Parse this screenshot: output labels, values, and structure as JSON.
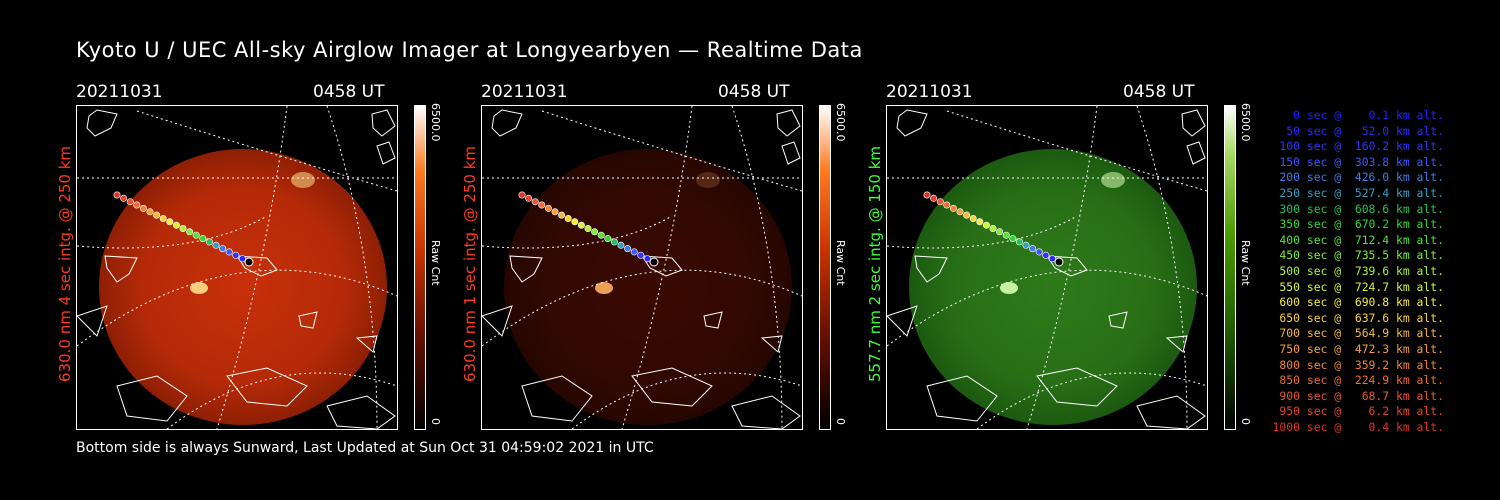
{
  "title": "Kyoto U / UEC All-sky Airglow Imager at Longyearbyen — Realtime Data",
  "footer": "Bottom side is always Sunward, Last Updated at Sun Oct 31 04:59:02 2021 in UTC",
  "panels": [
    {
      "date": "20211031",
      "time": "0458 UT",
      "label": "630.0 nm 4 sec intg. @ 250 km",
      "label_color": "#ff3b1e",
      "cbar_max": "6500.0",
      "cbar_min": "0",
      "cbar_unit": "Raw Cnt",
      "cbar_hue": "red",
      "brightness": "high"
    },
    {
      "date": "20211031",
      "time": "0458 UT",
      "label": "630.0 nm 1 sec intg. @ 250 km",
      "label_color": "#ff3b1e",
      "cbar_max": "6500.0",
      "cbar_min": "0",
      "cbar_unit": "Raw Cnt",
      "cbar_hue": "red",
      "brightness": "low"
    },
    {
      "date": "20211031",
      "time": "0458 UT",
      "label": "557.7 nm 2 sec intg. @ 150 km",
      "label_color": "#3cff3c",
      "cbar_max": "6500.0",
      "cbar_min": "0",
      "cbar_unit": "Raw Cnt",
      "cbar_hue": "green",
      "brightness": "medium"
    }
  ],
  "legend": [
    {
      "text": "   0 sec @    0.1 km alt.",
      "color": "#2020ff"
    },
    {
      "text": "  50 sec @   52.0 km alt.",
      "color": "#2a2aff"
    },
    {
      "text": " 100 sec @  160.2 km alt.",
      "color": "#3333ff"
    },
    {
      "text": " 150 sec @  303.8 km alt.",
      "color": "#3d55ff"
    },
    {
      "text": " 200 sec @  426.0 km alt.",
      "color": "#3f7be0"
    },
    {
      "text": " 250 sec @  527.4 km alt.",
      "color": "#30a0c0"
    },
    {
      "text": " 300 sec @  608.6 km alt.",
      "color": "#22c060"
    },
    {
      "text": " 350 sec @  670.2 km alt.",
      "color": "#33d733"
    },
    {
      "text": " 400 sec @  712.4 km alt.",
      "color": "#55e03a"
    },
    {
      "text": " 450 sec @  735.5 km alt.",
      "color": "#80ea40"
    },
    {
      "text": " 500 sec @  739.6 km alt.",
      "color": "#aef03c"
    },
    {
      "text": " 550 sec @  724.7 km alt.",
      "color": "#d8f23a"
    },
    {
      "text": " 600 sec @  690.8 km alt.",
      "color": "#f2ec3a"
    },
    {
      "text": " 650 sec @  637.6 km alt.",
      "color": "#f6d23a"
    },
    {
      "text": " 700 sec @  564.9 km alt.",
      "color": "#f6b83a"
    },
    {
      "text": " 750 sec @  472.3 km alt.",
      "color": "#f59e38"
    },
    {
      "text": " 800 sec @  359.2 km alt.",
      "color": "#f28436"
    },
    {
      "text": " 850 sec @  224.9 km alt.",
      "color": "#ee6a33"
    },
    {
      "text": " 900 sec @   68.7 km alt.",
      "color": "#ea5530"
    },
    {
      "text": " 950 sec @    6.2 km alt.",
      "color": "#e4442c"
    },
    {
      "text": "1000 sec @    0.4 km alt.",
      "color": "#de3428"
    }
  ]
}
